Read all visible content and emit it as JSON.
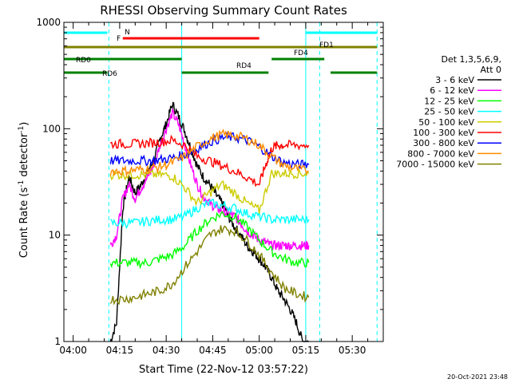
{
  "chart_data": {
    "type": "line",
    "title": "RHESSI Observing Summary Count Rates",
    "xlabel": "Start Time (22-Nov-12 03:57:22)",
    "ylabel_main": "Count Rate (s",
    "ylabel_sup1": "-1",
    "ylabel_mid": " detector",
    "ylabel_sup2": "-1",
    "ylabel_end": ")",
    "yscale": "log",
    "xlim_minutes": [
      -3,
      100
    ],
    "ylim": [
      1,
      1000
    ],
    "x_ticks": [
      {
        "label": "04:00",
        "minute": 0
      },
      {
        "label": "04:15",
        "minute": 15
      },
      {
        "label": "04:30",
        "minute": 30
      },
      {
        "label": "04:45",
        "minute": 45
      },
      {
        "label": "05:00",
        "minute": 60
      },
      {
        "label": "05:15",
        "minute": 75
      },
      {
        "label": "05:30",
        "minute": 90
      }
    ],
    "y_ticks": [
      {
        "label": "1",
        "value": 1
      },
      {
        "label": "10",
        "value": 10
      },
      {
        "label": "100",
        "value": 100
      },
      {
        "label": "1000",
        "value": 1000
      }
    ],
    "legend_header": [
      "Det 1,3,5,6,9,",
      "Att 0"
    ],
    "series": [
      {
        "name": "3 - 6 keV",
        "color": "#000000",
        "points": [
          [
            12,
            1
          ],
          [
            14,
            1.5
          ],
          [
            16,
            18
          ],
          [
            18,
            35
          ],
          [
            20,
            25
          ],
          [
            22,
            30
          ],
          [
            24,
            40
          ],
          [
            26,
            50
          ],
          [
            28,
            80
          ],
          [
            30,
            110
          ],
          [
            32,
            170
          ],
          [
            34,
            130
          ],
          [
            36,
            95
          ],
          [
            38,
            65
          ],
          [
            40,
            45
          ],
          [
            42,
            35
          ],
          [
            44,
            30
          ],
          [
            46,
            24
          ],
          [
            48,
            20
          ],
          [
            50,
            15
          ],
          [
            52,
            12
          ],
          [
            54,
            10
          ],
          [
            56,
            8
          ],
          [
            58,
            7
          ],
          [
            60,
            6
          ],
          [
            62,
            5
          ],
          [
            64,
            4
          ],
          [
            66,
            3
          ],
          [
            68,
            2.5
          ],
          [
            70,
            2
          ],
          [
            72,
            1.5
          ],
          [
            74,
            1
          ],
          [
            76,
            1
          ]
        ]
      },
      {
        "name": "6 - 12 keV",
        "color": "#ff00ff",
        "points": [
          [
            12,
            8
          ],
          [
            14,
            10
          ],
          [
            16,
            22
          ],
          [
            18,
            30
          ],
          [
            20,
            22
          ],
          [
            22,
            28
          ],
          [
            24,
            35
          ],
          [
            26,
            45
          ],
          [
            28,
            70
          ],
          [
            30,
            100
          ],
          [
            32,
            140
          ],
          [
            34,
            110
          ],
          [
            36,
            70
          ],
          [
            38,
            45
          ],
          [
            40,
            30
          ],
          [
            42,
            23
          ],
          [
            44,
            20
          ],
          [
            46,
            18
          ],
          [
            48,
            17
          ],
          [
            50,
            16
          ],
          [
            52,
            15
          ],
          [
            54,
            13
          ],
          [
            56,
            11
          ],
          [
            58,
            10
          ],
          [
            60,
            9
          ],
          [
            62,
            8.5
          ],
          [
            64,
            8
          ],
          [
            66,
            8
          ],
          [
            68,
            8
          ],
          [
            70,
            8
          ],
          [
            72,
            8
          ],
          [
            74,
            8
          ],
          [
            76,
            8
          ]
        ]
      },
      {
        "name": "12 - 25 keV",
        "color": "#00ff00",
        "points": [
          [
            12,
            5.5
          ],
          [
            16,
            5.5
          ],
          [
            20,
            5.5
          ],
          [
            24,
            5.5
          ],
          [
            28,
            6
          ],
          [
            32,
            6.5
          ],
          [
            36,
            8
          ],
          [
            40,
            11
          ],
          [
            44,
            14
          ],
          [
            48,
            16
          ],
          [
            52,
            15
          ],
          [
            56,
            12
          ],
          [
            60,
            9
          ],
          [
            64,
            7
          ],
          [
            68,
            6
          ],
          [
            72,
            5.5
          ],
          [
            76,
            5.5
          ]
        ]
      },
      {
        "name": "25 - 50 keV",
        "color": "#00ffff",
        "points": [
          [
            12,
            13
          ],
          [
            16,
            13
          ],
          [
            20,
            13
          ],
          [
            24,
            13.5
          ],
          [
            28,
            14
          ],
          [
            32,
            14
          ],
          [
            36,
            15
          ],
          [
            40,
            18
          ],
          [
            44,
            20
          ],
          [
            48,
            19
          ],
          [
            52,
            18
          ],
          [
            56,
            16
          ],
          [
            60,
            15
          ],
          [
            64,
            14
          ],
          [
            68,
            14
          ],
          [
            72,
            14
          ],
          [
            76,
            14
          ]
        ]
      },
      {
        "name": "50 - 100 keV",
        "color": "#cccc00",
        "points": [
          [
            12,
            37
          ],
          [
            16,
            37
          ],
          [
            20,
            37
          ],
          [
            24,
            37
          ],
          [
            28,
            37
          ],
          [
            32,
            36
          ],
          [
            36,
            28
          ],
          [
            40,
            20
          ],
          [
            44,
            25
          ],
          [
            48,
            30
          ],
          [
            52,
            25
          ],
          [
            56,
            20
          ],
          [
            60,
            17
          ],
          [
            64,
            38
          ],
          [
            68,
            38
          ],
          [
            72,
            38
          ],
          [
            76,
            38
          ]
        ]
      },
      {
        "name": "100 - 300 keV",
        "color": "#ff0000",
        "points": [
          [
            12,
            72
          ],
          [
            16,
            72
          ],
          [
            20,
            72
          ],
          [
            24,
            73
          ],
          [
            28,
            75
          ],
          [
            32,
            78
          ],
          [
            36,
            70
          ],
          [
            40,
            55
          ],
          [
            44,
            50
          ],
          [
            48,
            45
          ],
          [
            52,
            40
          ],
          [
            56,
            35
          ],
          [
            60,
            30
          ],
          [
            62,
            45
          ],
          [
            64,
            65
          ],
          [
            66,
            70
          ],
          [
            68,
            70
          ],
          [
            72,
            70
          ],
          [
            76,
            70
          ]
        ]
      },
      {
        "name": "300 - 800 keV",
        "color": "#0000ff",
        "points": [
          [
            12,
            50
          ],
          [
            16,
            50
          ],
          [
            20,
            50
          ],
          [
            24,
            50
          ],
          [
            28,
            51
          ],
          [
            32,
            53
          ],
          [
            36,
            57
          ],
          [
            40,
            65
          ],
          [
            44,
            75
          ],
          [
            48,
            82
          ],
          [
            52,
            83
          ],
          [
            56,
            78
          ],
          [
            60,
            68
          ],
          [
            64,
            55
          ],
          [
            68,
            48
          ],
          [
            72,
            46
          ],
          [
            76,
            46
          ]
        ]
      },
      {
        "name": "800 - 7000 keV",
        "color": "#ff8c00",
        "points": [
          [
            12,
            40
          ],
          [
            16,
            40
          ],
          [
            20,
            41
          ],
          [
            24,
            42
          ],
          [
            28,
            44
          ],
          [
            32,
            48
          ],
          [
            36,
            55
          ],
          [
            40,
            68
          ],
          [
            44,
            80
          ],
          [
            48,
            88
          ],
          [
            52,
            87
          ],
          [
            56,
            80
          ],
          [
            60,
            70
          ],
          [
            64,
            55
          ],
          [
            68,
            45
          ],
          [
            72,
            42
          ],
          [
            76,
            40
          ]
        ]
      },
      {
        "name": "7000 - 15000 keV",
        "color": "#808000",
        "points": [
          [
            12,
            2.5
          ],
          [
            16,
            2.5
          ],
          [
            20,
            2.6
          ],
          [
            24,
            2.8
          ],
          [
            28,
            3
          ],
          [
            32,
            3.5
          ],
          [
            36,
            5
          ],
          [
            40,
            7
          ],
          [
            44,
            10
          ],
          [
            48,
            11.5
          ],
          [
            52,
            11
          ],
          [
            56,
            9
          ],
          [
            60,
            6.5
          ],
          [
            64,
            4.5
          ],
          [
            68,
            3.2
          ],
          [
            72,
            2.8
          ],
          [
            76,
            2.6
          ]
        ]
      }
    ],
    "annotations": {
      "n_label": "N",
      "f_label": "F",
      "fd1_label": "FD1",
      "fd4_label": "FD4",
      "rd0_label": "RD0",
      "rd6_label": "RD6",
      "rd4_label": "RD4"
    },
    "flag_bars": [
      {
        "label_key": "N",
        "color": "#00ffff",
        "segments": [
          [
            -3,
            11
          ],
          [
            75,
            98
          ]
        ]
      },
      {
        "label_key": "F",
        "color": "#ff0000",
        "segments": [
          [
            16,
            60
          ]
        ]
      },
      {
        "label_key": "FD1",
        "color": "#808000",
        "segments": [
          [
            -3,
            98
          ]
        ]
      },
      {
        "label_key": "RD0",
        "color": "#008000",
        "segments": [
          [
            -3,
            35
          ],
          [
            64,
            81
          ]
        ]
      },
      {
        "label_key": "RD6",
        "color": "#008000",
        "segments": [
          [
            -3,
            11
          ]
        ]
      },
      {
        "label_key": "RD4",
        "color": "#008000",
        "segments": [
          [
            35,
            63
          ]
        ]
      },
      {
        "label_key": "RD6b",
        "color": "#008000",
        "segments": [
          [
            83,
            98
          ]
        ]
      }
    ],
    "vlines": [
      {
        "minute": -3,
        "color": "#00ffff",
        "dashed": false
      },
      {
        "minute": 11.5,
        "color": "#00ffff",
        "dashed": true
      },
      {
        "minute": 35,
        "color": "#00ffff",
        "dashed": false
      },
      {
        "minute": 75,
        "color": "#00ffff",
        "dashed": false
      },
      {
        "minute": 79.5,
        "color": "#00ffff",
        "dashed": true
      },
      {
        "minute": 98,
        "color": "#00ffff",
        "dashed": true
      }
    ]
  },
  "footer": {
    "timestamp": "20-Oct-2021 23:48"
  }
}
